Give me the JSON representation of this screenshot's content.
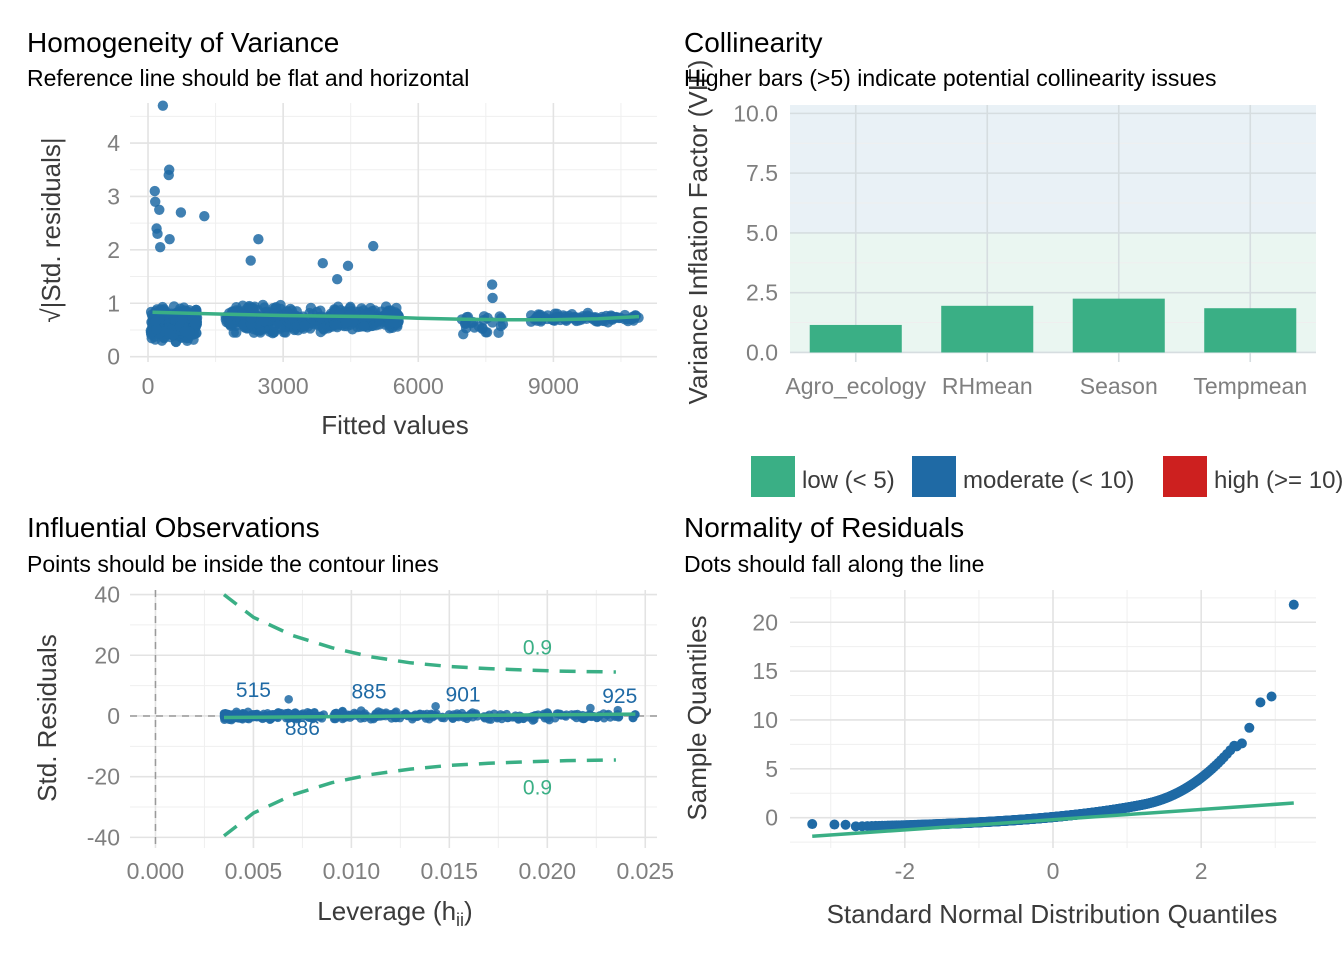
{
  "colors": {
    "green": "#3aaf85",
    "blue": "#1f6aa5",
    "red": "#cd201f",
    "grid": "#e3e3e3",
    "tick": "#7f7f7f",
    "bg_low": "#eaf6f1",
    "bg_mod": "#e9f1f6"
  },
  "chart_data": [
    {
      "id": "homogeneity",
      "type": "scatter",
      "title": "Homogeneity of Variance",
      "subtitle": "Reference line should be flat and horizontal",
      "xlabel": "Fitted values",
      "ylabel": "√|Std. residuals|",
      "xlim": [
        -400,
        11300
      ],
      "ylim": [
        -0.1,
        4.75
      ],
      "xticks": [
        0,
        3000,
        6000,
        9000
      ],
      "xtick_labels": [
        "0",
        "3000",
        "6000",
        "9000"
      ],
      "yticks": [
        0,
        1,
        2,
        3,
        4
      ],
      "ytick_labels": [
        "0",
        "1",
        "2",
        "3",
        "4"
      ],
      "clusters": [
        {
          "x": [
            60,
            1100
          ],
          "n": 340,
          "y_center": 0.62,
          "y_spread": 0.42
        },
        {
          "x": [
            1700,
            3200
          ],
          "n": 190,
          "y_center": 0.7,
          "y_spread": 0.36
        },
        {
          "x": [
            3200,
            4100
          ],
          "n": 60,
          "y_center": 0.65,
          "y_spread": 0.32
        },
        {
          "x": [
            4100,
            5600
          ],
          "n": 180,
          "y_center": 0.7,
          "y_spread": 0.33
        },
        {
          "x": [
            6900,
            8000
          ],
          "n": 24,
          "y_center": 0.6,
          "y_spread": 0.3
        },
        {
          "x": [
            8500,
            10900
          ],
          "n": 90,
          "y_center": 0.72,
          "y_spread": 0.12
        }
      ],
      "outliers": [
        {
          "x": 330,
          "y": 4.7
        },
        {
          "x": 470,
          "y": 3.5
        },
        {
          "x": 460,
          "y": 3.4
        },
        {
          "x": 150,
          "y": 3.1
        },
        {
          "x": 160,
          "y": 2.9
        },
        {
          "x": 250,
          "y": 2.75
        },
        {
          "x": 730,
          "y": 2.7
        },
        {
          "x": 1250,
          "y": 2.63
        },
        {
          "x": 190,
          "y": 2.4
        },
        {
          "x": 210,
          "y": 2.3
        },
        {
          "x": 480,
          "y": 2.2
        },
        {
          "x": 2450,
          "y": 2.2
        },
        {
          "x": 270,
          "y": 2.05
        },
        {
          "x": 5000,
          "y": 2.07
        },
        {
          "x": 3880,
          "y": 1.75
        },
        {
          "x": 4440,
          "y": 1.7
        },
        {
          "x": 7640,
          "y": 1.35
        },
        {
          "x": 7650,
          "y": 1.1
        },
        {
          "x": 2280,
          "y": 1.8
        },
        {
          "x": 4200,
          "y": 1.45
        }
      ],
      "smooth": {
        "x": [
          100,
          1000,
          2000,
          3000,
          4000,
          5000,
          6000,
          7000,
          8000,
          9000,
          10000,
          10900
        ],
        "y": [
          0.83,
          0.81,
          0.79,
          0.77,
          0.76,
          0.75,
          0.72,
          0.7,
          0.69,
          0.69,
          0.71,
          0.75
        ]
      }
    },
    {
      "id": "collinearity",
      "type": "bar",
      "title": "Collinearity",
      "subtitle": "Higher bars (>5) indicate potential collinearity issues",
      "xlabel": "",
      "ylabel": "Variance Inflation Factor (VIF)",
      "categories": [
        "Agro_ecology",
        "RHmean",
        "Season",
        "Tempmean"
      ],
      "values": [
        1.15,
        1.95,
        2.25,
        1.85
      ],
      "ylim": [
        -0.4,
        10.35
      ],
      "yticks": [
        0,
        2.5,
        5,
        7.5,
        10
      ],
      "ytick_labels": [
        "0.0",
        "2.5",
        "5.0",
        "7.5",
        "10.0"
      ],
      "bands": [
        {
          "from": 0,
          "to": 5,
          "name": "low"
        },
        {
          "from": 5,
          "to": 10.35,
          "name": "moderate"
        }
      ],
      "legend": {
        "position": "bottom",
        "entries": [
          {
            "label": "low (< 5)",
            "color": "#3aaf85"
          },
          {
            "label": "moderate (< 10)",
            "color": "#1f6aa5"
          },
          {
            "label": "high (>= 10)",
            "color": "#cd201f"
          }
        ]
      }
    },
    {
      "id": "influence",
      "type": "scatter",
      "title": "Influential Observations",
      "subtitle": "Points should be inside the contour lines",
      "xlabel": "Leverage (h",
      "xlabel_sub": "ii",
      "xlabel_end": ")",
      "ylabel": "Std. Residuals",
      "xlim": [
        -0.0013,
        0.0256
      ],
      "ylim": [
        -43.5,
        41.5
      ],
      "xticks": [
        0,
        0.005,
        0.01,
        0.015,
        0.02,
        0.025
      ],
      "xtick_labels": [
        "0.000",
        "0.005",
        "0.010",
        "0.015",
        "0.020",
        "0.025"
      ],
      "yticks": [
        -40,
        -20,
        0,
        20,
        40
      ],
      "ytick_labels": [
        "-40",
        "-20",
        "0",
        "20",
        "40"
      ],
      "points_range": {
        "x": [
          0.0035,
          0.0245
        ],
        "n": 420
      },
      "outliers": [
        {
          "x": 0.0068,
          "y": 5.5
        },
        {
          "x": 0.0143,
          "y": 3.2
        },
        {
          "x": 0.0222,
          "y": 2.6
        },
        {
          "x": 0.0236,
          "y": 1.9
        },
        {
          "x": 0.0245,
          "y": 0.5
        },
        {
          "x": 0.0105,
          "y": 1.8
        }
      ],
      "cook_upper": {
        "x": [
          0.0035,
          0.005,
          0.007,
          0.009,
          0.011,
          0.013,
          0.015,
          0.017,
          0.019,
          0.021,
          0.0235
        ],
        "y": [
          40,
          32.5,
          26.5,
          22.5,
          19.5,
          17.5,
          16.3,
          15.6,
          15.1,
          14.7,
          14.5
        ]
      },
      "cook_lower": {
        "x": [
          0.0035,
          0.005,
          0.007,
          0.009,
          0.011,
          0.013,
          0.015,
          0.017,
          0.019,
          0.021,
          0.0235
        ],
        "y": [
          -39.5,
          -32,
          -26,
          -22,
          -19.3,
          -17.5,
          -16.3,
          -15.6,
          -15.1,
          -14.7,
          -14.5
        ]
      },
      "smooth": {
        "x": [
          0.0035,
          0.0245
        ],
        "y": [
          -0.5,
          0.6
        ]
      },
      "annotations": [
        {
          "text": "515",
          "x": 0.005,
          "y": 8.5,
          "color": "blue"
        },
        {
          "text": "885",
          "x": 0.0109,
          "y": 8.0,
          "color": "blue"
        },
        {
          "text": "901",
          "x": 0.0157,
          "y": 7.0,
          "color": "blue"
        },
        {
          "text": "925",
          "x": 0.0237,
          "y": 6.5,
          "color": "blue"
        },
        {
          "text": "886",
          "x": 0.0075,
          "y": -4.0,
          "color": "blue"
        },
        {
          "text": "0.9",
          "x": 0.0195,
          "y": 22.5,
          "color": "green"
        },
        {
          "text": "0.9",
          "x": 0.0195,
          "y": -23.5,
          "color": "green"
        }
      ]
    },
    {
      "id": "normality",
      "type": "scatter",
      "title": "Normality of Residuals",
      "subtitle": "Dots should fall along the line",
      "xlabel": "Standard Normal Distribution Quantiles",
      "ylabel": "Sample Quantiles",
      "xlim": [
        -3.55,
        3.55
      ],
      "ylim": [
        -3.1,
        23.3
      ],
      "xticks": [
        -2,
        0,
        2
      ],
      "xtick_labels": [
        "-2",
        "0",
        "2"
      ],
      "yticks": [
        0,
        5,
        10,
        15,
        20
      ],
      "ytick_labels": [
        "0",
        "5",
        "10",
        "15",
        "20"
      ],
      "n": 900,
      "qq_line": {
        "x": [
          -3.25,
          3.25
        ],
        "y": [
          -1.9,
          1.5
        ]
      },
      "tail_points": [
        {
          "x": 3.25,
          "y": 21.8
        },
        {
          "x": 2.95,
          "y": 12.4
        },
        {
          "x": 2.8,
          "y": 11.8
        },
        {
          "x": 2.65,
          "y": 9.2
        },
        {
          "x": 2.55,
          "y": 7.6
        },
        {
          "x": 2.48,
          "y": 7.3
        }
      ],
      "head_points": [
        {
          "x": -3.25,
          "y": -0.65
        },
        {
          "x": -2.95,
          "y": -0.7
        },
        {
          "x": -2.8,
          "y": -0.72
        }
      ]
    }
  ]
}
